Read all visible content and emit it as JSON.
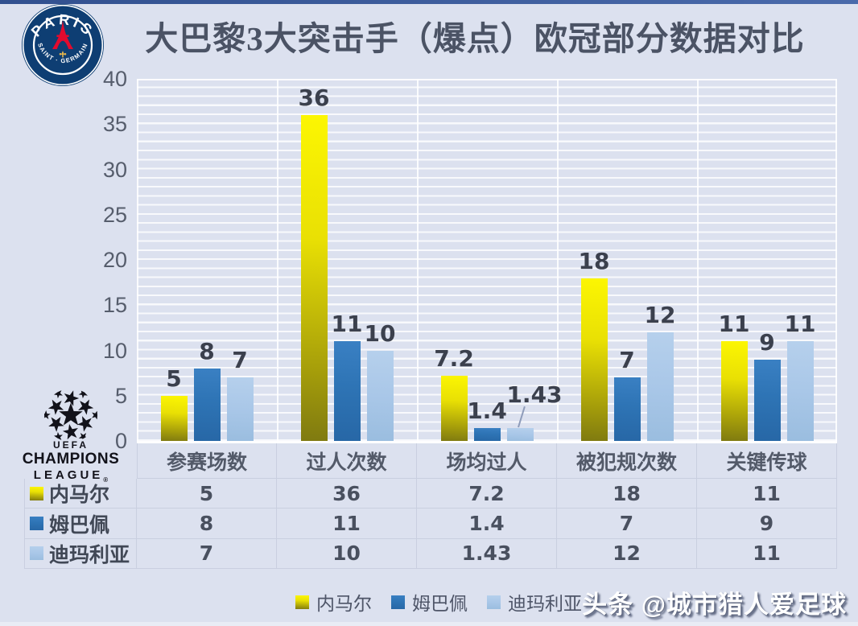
{
  "header": {
    "title": "大巴黎3大突击手（爆点）欧冠部分数据对比"
  },
  "psg_logo": {
    "alt": "paris-saint-germain-crest",
    "arc_top": "PARIS",
    "arc_bottom": "SAINT · GERMAIN"
  },
  "uefa_logo": {
    "uefa": "UEFA",
    "champions": "CHAMPIONS",
    "league": "LEAGUE",
    "reg": "®"
  },
  "chart_data": {
    "type": "bar",
    "title": "大巴黎3大突击手（爆点）欧冠部分数据对比",
    "categories": [
      "参赛场数",
      "过人次数",
      "场均过人",
      "被犯规次数",
      "关键传球"
    ],
    "series": [
      {
        "name": "内马尔",
        "values": [
          5,
          36,
          7.2,
          18,
          11
        ],
        "color": "#f7f000",
        "gradient": [
          "#fcf602 0%",
          "#e9e004 38%",
          "#a69e0a 78%",
          "#7f7a10 100%"
        ]
      },
      {
        "name": "姆巴佩",
        "values": [
          8,
          11,
          1.4,
          7,
          9
        ],
        "color": "#2e74b5",
        "gradient": [
          "#3a80c3 0%",
          "#2e74b5 45%",
          "#2767a6 100%"
        ]
      },
      {
        "name": "迪玛利亚",
        "values": [
          7,
          10,
          1.43,
          12,
          11
        ],
        "color": "#a9c7e8",
        "gradient": [
          "#b6d0ec 0%",
          "#a9c7e8 50%",
          "#9abddf 100%"
        ]
      }
    ],
    "xlabel": "",
    "ylabel": "",
    "ylim": [
      0,
      40
    ],
    "yticks": [
      0,
      5,
      10,
      15,
      20,
      25,
      30,
      35,
      40
    ],
    "grid": true,
    "value_labels": true,
    "data_table": true,
    "legend_position": "bottom",
    "callout": {
      "category_index": 2,
      "series_index": 2,
      "label": "1.43"
    }
  },
  "watermark": {
    "text": "头条 @城市猎人爱足球"
  }
}
